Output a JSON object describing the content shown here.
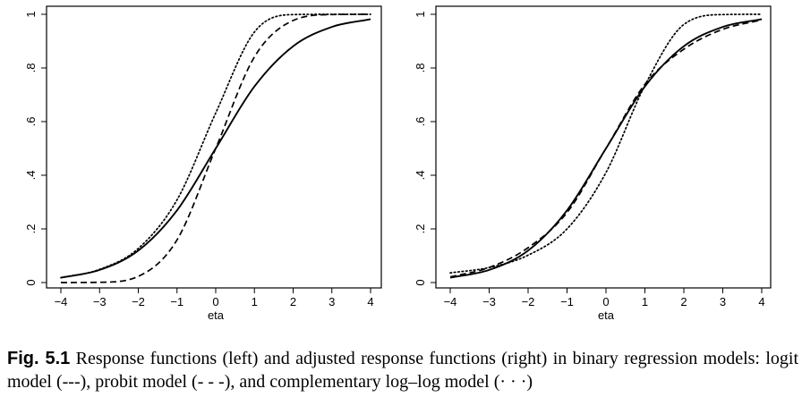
{
  "caption": {
    "label": "Fig. 5.1",
    "text": "Response functions (left) and adjusted response functions (right) in binary regression models: logit model (---), probit model (- - -), and complementary log–log model (· · ·)"
  },
  "chart_data": [
    {
      "type": "line",
      "title": "",
      "xlabel": "eta",
      "ylabel": "",
      "xlim": [
        -4,
        4
      ],
      "ylim": [
        0,
        1
      ],
      "x_ticks": [
        "−4",
        "−3",
        "−2",
        "−1",
        "0",
        "1",
        "2",
        "3",
        "4"
      ],
      "y_ticks": [
        "0",
        ".2",
        ".4",
        ".6",
        ".8",
        "1"
      ],
      "grid": false,
      "x": [
        -4,
        -3,
        -2,
        -1,
        0,
        1,
        2,
        3,
        4
      ],
      "series": [
        {
          "style": "solid",
          "values": [
            0.018,
            0.047,
            0.119,
            0.269,
            0.5,
            0.731,
            0.881,
            0.953,
            0.982
          ]
        },
        {
          "style": "dashed",
          "values": [
            0.0,
            0.001,
            0.023,
            0.159,
            0.5,
            0.841,
            0.977,
            0.999,
            1.0
          ]
        },
        {
          "style": "dotted",
          "values": [
            0.018,
            0.049,
            0.127,
            0.308,
            0.632,
            0.934,
            0.999,
            1.0,
            1.0
          ]
        }
      ]
    },
    {
      "type": "line",
      "title": "",
      "xlabel": "eta",
      "ylabel": "",
      "xlim": [
        -4,
        4
      ],
      "ylim": [
        0,
        1
      ],
      "x_ticks": [
        "−4",
        "−3",
        "−2",
        "−1",
        "0",
        "1",
        "2",
        "3",
        "4"
      ],
      "y_ticks": [
        "0",
        ".2",
        ".4",
        ".6",
        ".8",
        "1"
      ],
      "grid": false,
      "x": [
        -4,
        -3,
        -2,
        -1,
        0,
        1,
        2,
        3,
        4
      ],
      "series": [
        {
          "style": "solid",
          "values": [
            0.018,
            0.047,
            0.119,
            0.269,
            0.5,
            0.731,
            0.881,
            0.953,
            0.982
          ]
        },
        {
          "style": "dashed",
          "values": [
            0.021,
            0.056,
            0.13,
            0.261,
            0.5,
            0.739,
            0.87,
            0.944,
            0.979
          ]
        },
        {
          "style": "dotted",
          "values": [
            0.036,
            0.056,
            0.102,
            0.2,
            0.41,
            0.735,
            0.962,
            0.999,
            1.0
          ]
        }
      ]
    }
  ]
}
